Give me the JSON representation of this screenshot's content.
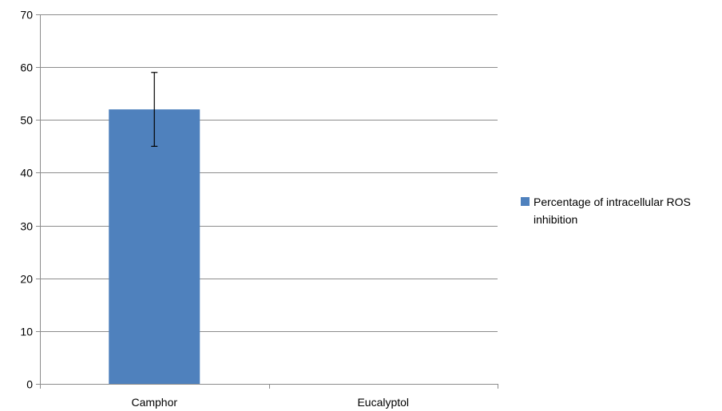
{
  "chart_data": {
    "type": "bar",
    "categories": [
      "Camphor",
      "Eucalyptol"
    ],
    "series": [
      {
        "name": "Percentage of intracellular ROS inhibition",
        "values": [
          52,
          0
        ],
        "error": [
          7,
          0
        ]
      }
    ],
    "ylim": [
      0,
      70
    ],
    "yticks": [
      0,
      10,
      20,
      30,
      40,
      50,
      60,
      70
    ],
    "grid": true,
    "legend_position": "right",
    "colors": {
      "bar": "#4F81BD",
      "grid": "#8C8C8C",
      "axis": "#8C8C8C",
      "error_bar": "#000000"
    }
  },
  "legend": {
    "line1": "Percentage of intracellular ROS",
    "line2": "inhibition"
  }
}
